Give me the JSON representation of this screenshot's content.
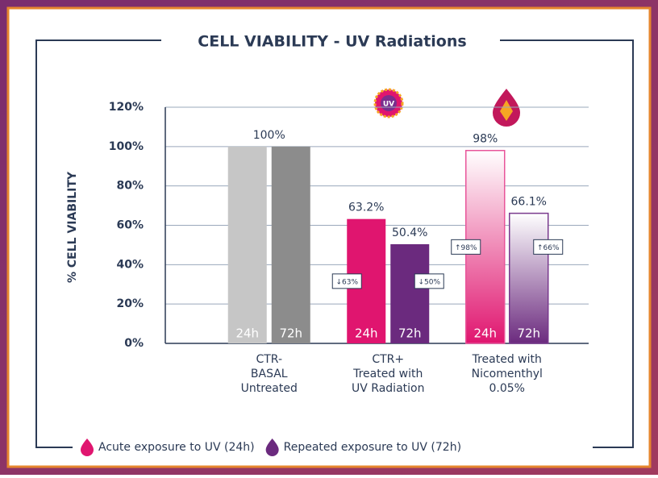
{
  "chart_data": {
    "type": "bar",
    "title": "CELL VIABILITY - UV Radiations",
    "y_label": "% CELL   VIABILITY",
    "annotations": [
      "UV"
    ],
    "categories": [
      [
        "CTR-",
        "BASAL",
        "Untreated"
      ],
      [
        "CTR+",
        "Treated with",
        "UV Radiation"
      ],
      [
        "Treated with",
        "Nicomenthyl",
        "0.05%"
      ]
    ],
    "bar_styles": [
      "solid",
      "solid",
      "gradient"
    ],
    "series": [
      {
        "name": "Acute exposure to UV (24h)",
        "bar_label": "24h",
        "color": "#e0156f",
        "colors": [
          "#c6c6c6",
          "#e0156f",
          "#e8559a"
        ],
        "values": [
          100,
          63.2,
          98
        ],
        "value_labels": [
          "100%",
          "63.2%",
          "98%"
        ],
        "change_labels": [
          null,
          "↓63%",
          "↑98%"
        ]
      },
      {
        "name": "Repeated exposure to UV (72h)",
        "bar_label": "72h",
        "color": "#6b2a7e",
        "colors": [
          "#8c8c8c",
          "#6b2a7e",
          "#7a3a8e"
        ],
        "values": [
          100,
          50.4,
          66.1
        ],
        "value_labels": [
          null,
          "50.4%",
          "66.1%"
        ],
        "change_labels": [
          null,
          "↓50%",
          "↑66%"
        ]
      }
    ],
    "ylim": [
      0,
      120
    ],
    "yticks": [
      {
        "value": 0,
        "label": "0%"
      },
      {
        "value": 20,
        "label": "20%"
      },
      {
        "value": 40,
        "label": "40%"
      },
      {
        "value": 60,
        "label": "60%"
      },
      {
        "value": 80,
        "label": "80%"
      },
      {
        "value": 100,
        "label": "100%"
      },
      {
        "value": 120,
        "label": "120%"
      }
    ],
    "grid": true
  }
}
